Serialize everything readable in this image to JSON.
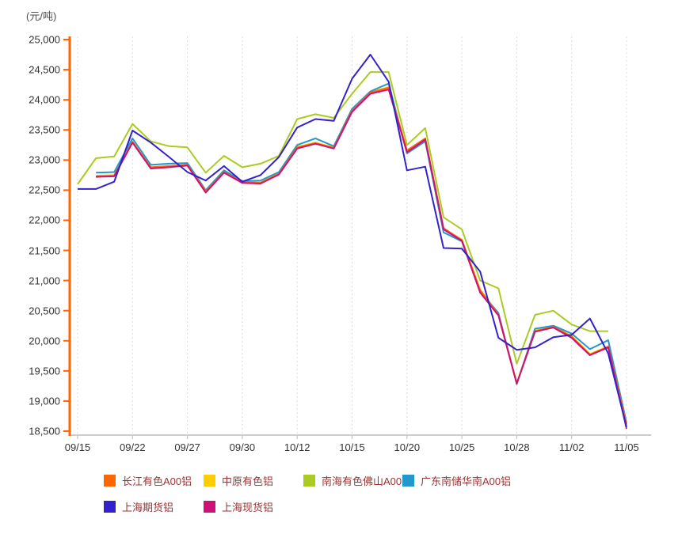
{
  "chart_data": {
    "type": "line",
    "title": "",
    "y_axis": {
      "title": "(元/吨)",
      "min": 18500,
      "max": 25000,
      "step": 500,
      "tick_labels": [
        "25,000",
        "24,500",
        "24,000",
        "23,500",
        "23,000",
        "22,500",
        "22,000",
        "21,500",
        "21,000",
        "20,500",
        "20,000",
        "19,500",
        "19,000",
        "18,500"
      ]
    },
    "x_axis": {
      "tick_labels": [
        "09/15",
        "09/22",
        "09/27",
        "09/30",
        "10/12",
        "10/15",
        "10/20",
        "10/25",
        "10/28",
        "11/02",
        "11/05"
      ],
      "points_per_label_interval": 3,
      "num_points": 31
    },
    "grid": "vertical-dashed",
    "legend_position": "bottom",
    "series": [
      {
        "name": "长江有色A00铝",
        "color": "#ff6600",
        "values": [
          null,
          22730,
          22740,
          23300,
          22880,
          22900,
          22920,
          22480,
          22800,
          22630,
          22620,
          22770,
          23210,
          23280,
          23200,
          23820,
          24120,
          24200,
          23160,
          23360,
          21870,
          21670,
          20840,
          20430,
          19290,
          20160,
          20230,
          20070,
          19770,
          19900,
          18610
        ]
      },
      {
        "name": "中原有色铝",
        "color": "#ffcc00",
        "values": [
          null,
          22740,
          22750,
          23310,
          22870,
          22890,
          22930,
          22470,
          22810,
          22630,
          22630,
          22780,
          23220,
          23290,
          23210,
          23830,
          24130,
          24210,
          23150,
          23330,
          21860,
          21680,
          20850,
          20440,
          19300,
          20170,
          20240,
          20080,
          19780,
          19910,
          18620
        ]
      },
      {
        "name": "南海有色佛山A00铝",
        "color": "#aacc22",
        "values": [
          22600,
          23030,
          23060,
          23600,
          23310,
          23230,
          23210,
          22790,
          23070,
          22880,
          22940,
          23070,
          23680,
          23760,
          23700,
          24100,
          24460,
          24460,
          23250,
          23530,
          22050,
          21850,
          21000,
          20870,
          19620,
          20430,
          20500,
          20270,
          20160,
          20160,
          null
        ]
      },
      {
        "name": "广东南储华南A00铝",
        "color": "#2299cc",
        "values": [
          null,
          22790,
          22800,
          23360,
          22920,
          22940,
          22950,
          22500,
          22830,
          22650,
          22660,
          22800,
          23250,
          23360,
          23230,
          23850,
          24140,
          24270,
          23110,
          23310,
          21800,
          21650,
          20820,
          20460,
          19280,
          20200,
          20250,
          20120,
          19860,
          20010,
          18640
        ]
      },
      {
        "name": "上海期货铝",
        "color": "#3322cc",
        "values": [
          22520,
          22520,
          22640,
          23490,
          23290,
          23050,
          22800,
          22660,
          22900,
          22640,
          22750,
          23050,
          23540,
          23680,
          23650,
          24350,
          24750,
          24300,
          22830,
          22890,
          21540,
          21530,
          21150,
          20050,
          19850,
          19890,
          20060,
          20100,
          20370,
          19790,
          18570
        ]
      },
      {
        "name": "上海现货铝",
        "color": "#cc1177",
        "values": [
          null,
          22720,
          22730,
          23290,
          22860,
          22880,
          22910,
          22460,
          22790,
          22620,
          22610,
          22760,
          23190,
          23270,
          23190,
          23800,
          24100,
          24170,
          23130,
          23340,
          21850,
          21660,
          20800,
          20420,
          19290,
          20150,
          20220,
          20050,
          19760,
          19890,
          18540
        ]
      }
    ],
    "colors": {
      "y_axis_line": "#ff6600",
      "x_axis_line": "#cccccc",
      "gridline": "#dddddd",
      "tick_label": "#333333",
      "legend_text": "#993333",
      "background": "#ffffff"
    }
  }
}
